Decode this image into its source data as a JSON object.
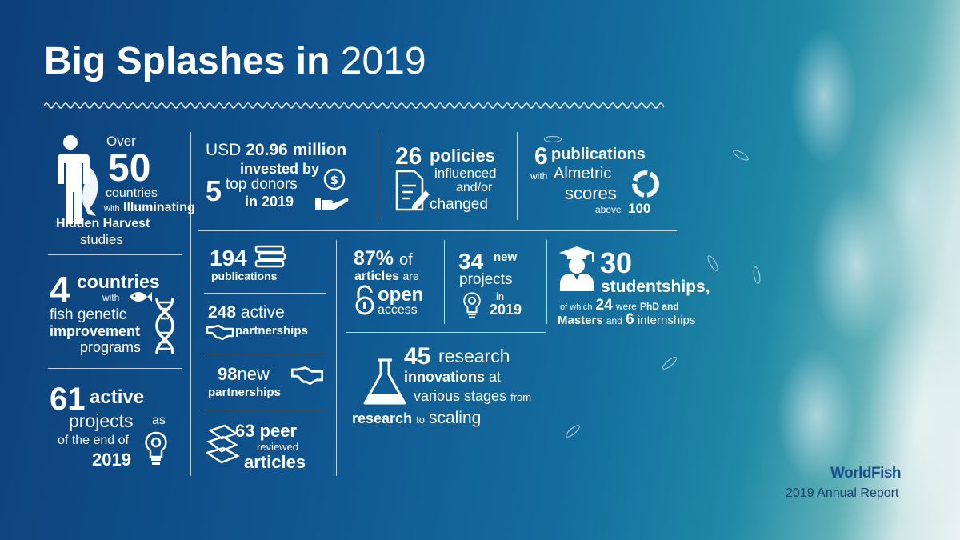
{
  "title": {
    "bold": "Big Splashes in",
    "year": "2019"
  },
  "s1": {
    "over": "Over",
    "num": "50",
    "countries": "countries",
    "with": "with",
    "illuminating": "Illuminating",
    "hidden_harvest": "Hidden Harvest",
    "studies": "studies"
  },
  "s2": {
    "num": "4",
    "countries": "countries",
    "with": "with",
    "fish_genetic": "fish genetic",
    "improvement": "improvement",
    "programs": "programs"
  },
  "s3": {
    "num": "61",
    "active": "active",
    "projects": "projects",
    "as": "as",
    "of_end": "of the end of",
    "year": "2019"
  },
  "s4": {
    "usd": "USD",
    "amount": "20.96 million",
    "invested_by": "invested by",
    "num": "5",
    "top_donors": "top donors",
    "in_year": "in 2019"
  },
  "s5": {
    "num": "26",
    "policies": "policies",
    "influenced": "influenced",
    "andor": "and/or",
    "changed": "changed"
  },
  "s6": {
    "num": "6",
    "publications": "publications",
    "with": "with",
    "almetric": "Almetric",
    "scores": "scores",
    "above": "above",
    "hundred": "100"
  },
  "s7": {
    "num": "194",
    "label": "publications"
  },
  "s8": {
    "num": "248",
    "active": "active",
    "label": "partnerships"
  },
  "s9": {
    "num": "98",
    "new": "new",
    "label": "partnerships"
  },
  "s10": {
    "num": "63",
    "peer": "peer",
    "reviewed": "reviewed",
    "articles": "articles"
  },
  "s11": {
    "num": "87%",
    "of": "of",
    "articles": "articles",
    "are": "are",
    "open": "open",
    "access": "access"
  },
  "s12": {
    "num": "34",
    "new": "new",
    "projects": "projects",
    "in": "in",
    "year": "2019"
  },
  "s13": {
    "num": "30",
    "studentships": "studentships,",
    "of_which": "of which",
    "phd_num": "24",
    "were": "were",
    "phd_and": "PhD and",
    "masters": "Masters",
    "and": "and",
    "intern_num": "6",
    "internships": "internships"
  },
  "s14": {
    "num": "45",
    "research": "research",
    "innovations": "innovations",
    "at": "at",
    "various": "various stages",
    "from": "from",
    "research2": "research",
    "to": "to",
    "scaling": "scaling"
  },
  "footer": {
    "brand": "WorldFish",
    "report": "2019 Annual Report"
  }
}
